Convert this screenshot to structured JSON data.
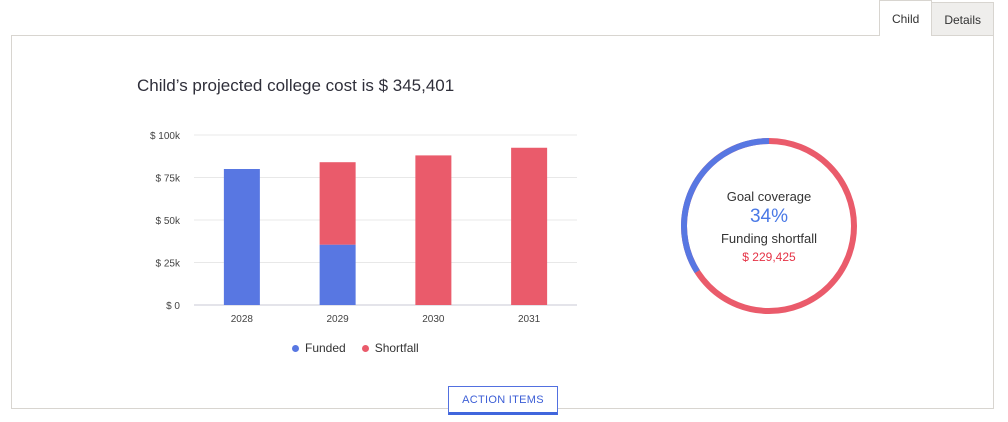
{
  "tabs": [
    {
      "label": "Child",
      "active": true
    },
    {
      "label": "Details",
      "active": false
    }
  ],
  "title": "Child’s projected college cost is $ 345,401",
  "colors": {
    "funded": "#5877e2",
    "shortfall": "#ea5b6b",
    "grid": "#e8e8e8"
  },
  "chart_data": {
    "type": "bar",
    "stacked": true,
    "categories": [
      "2028",
      "2029",
      "2030",
      "2031"
    ],
    "series": [
      {
        "name": "Funded",
        "values": [
          80000,
          35500,
          0,
          0
        ]
      },
      {
        "name": "Shortfall",
        "values": [
          0,
          48500,
          88000,
          92500
        ]
      }
    ],
    "ylim": [
      0,
      100000
    ],
    "yticks": [
      {
        "value": 0,
        "label": "$ 0"
      },
      {
        "value": 25000,
        "label": "$ 25k"
      },
      {
        "value": 50000,
        "label": "$ 50k"
      },
      {
        "value": 75000,
        "label": "$ 75k"
      },
      {
        "value": 100000,
        "label": "$ 100k"
      }
    ],
    "grid": true,
    "legend_position": "bottom"
  },
  "legend": [
    {
      "label": "Funded"
    },
    {
      "label": "Shortfall"
    }
  ],
  "coverage": {
    "label": "Goal coverage",
    "value": "34%",
    "percent": 34,
    "shortfall_label": "Funding shortfall",
    "shortfall_value": "$ 229,425"
  },
  "action_button": {
    "label": "ACTION ITEMS"
  }
}
